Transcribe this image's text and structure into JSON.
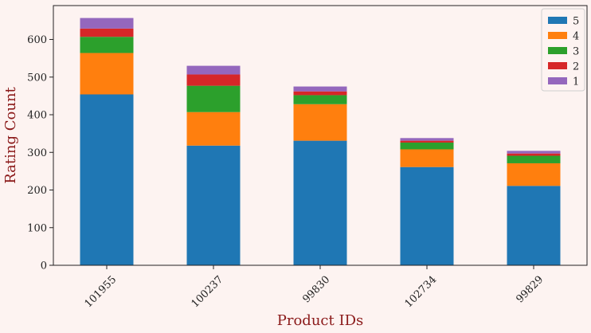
{
  "chart_data": {
    "type": "bar",
    "stacked": true,
    "title": "",
    "xlabel": "Product IDs",
    "ylabel": "Rating Count",
    "categories": [
      "101955",
      "100237",
      "99830",
      "102734",
      "99829"
    ],
    "series": [
      {
        "name": "5",
        "color": "#1f77b4",
        "values": [
          454,
          318,
          331,
          261,
          211
        ]
      },
      {
        "name": "4",
        "color": "#ff7f0e",
        "values": [
          110,
          89,
          97,
          47,
          60
        ]
      },
      {
        "name": "3",
        "color": "#2ca02c",
        "values": [
          43,
          70,
          24,
          18,
          20
        ]
      },
      {
        "name": "2",
        "color": "#d62728",
        "values": [
          22,
          30,
          10,
          5,
          6
        ]
      },
      {
        "name": "1",
        "color": "#9467bd",
        "values": [
          28,
          23,
          13,
          7,
          7
        ]
      }
    ],
    "ylim": [
      0,
      690
    ],
    "yticks": [
      0,
      100,
      200,
      300,
      400,
      500,
      600
    ],
    "grid": false,
    "legend": "top-right"
  }
}
